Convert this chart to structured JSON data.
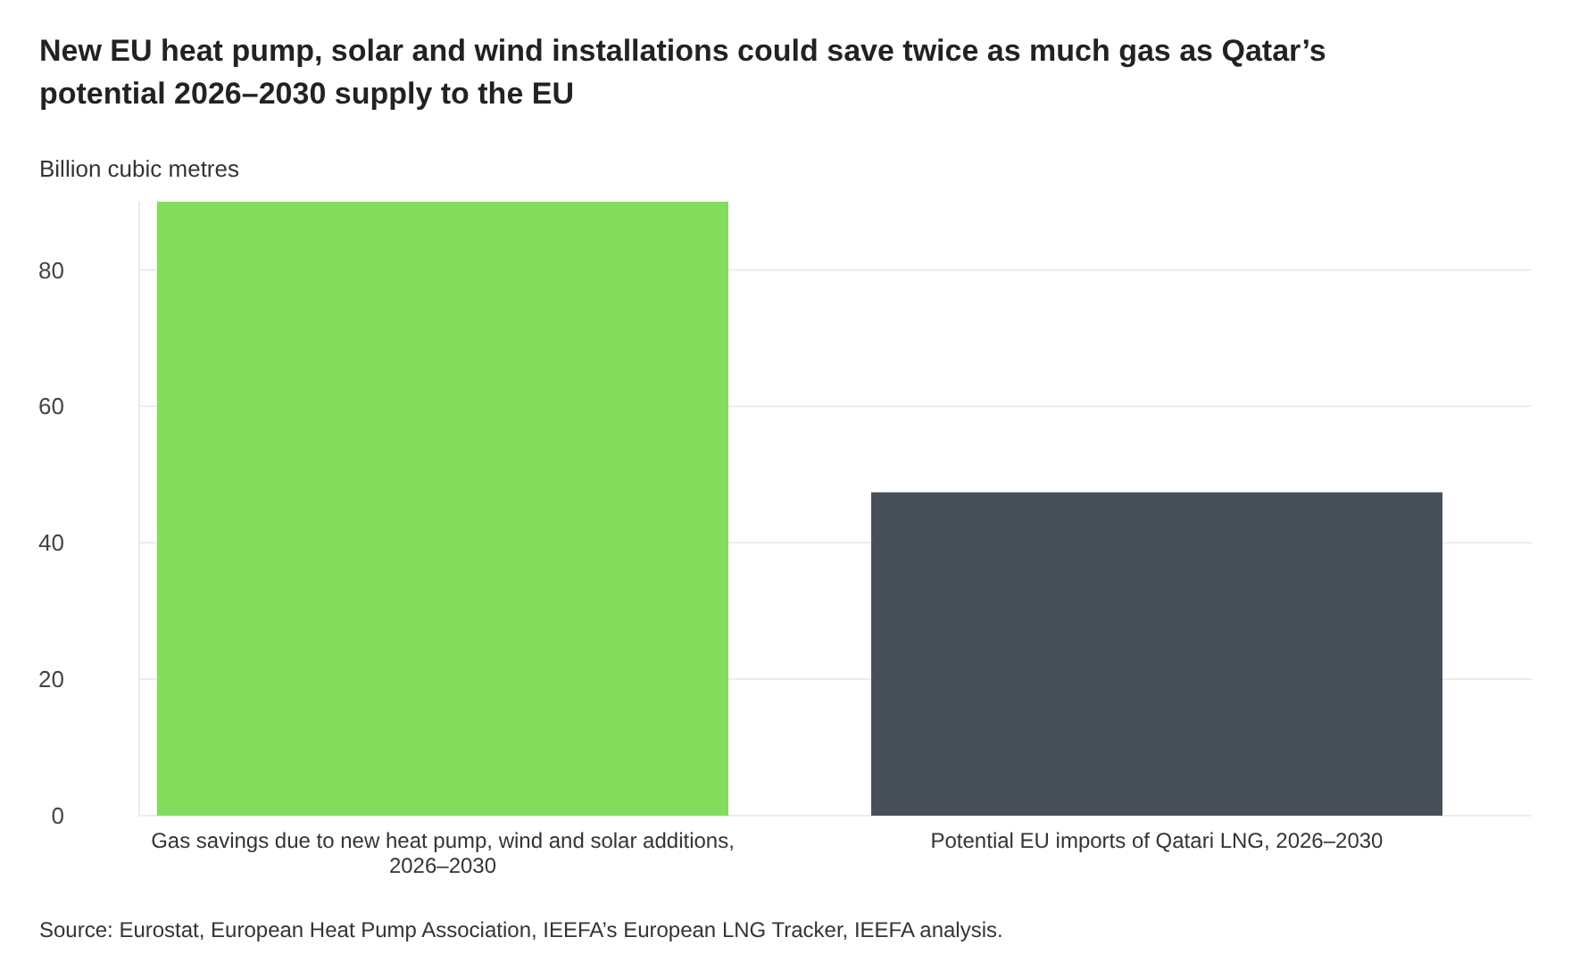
{
  "chart_data": {
    "type": "bar",
    "title": "New EU heat pump, solar and wind installations could save twice as much gas as Qatar’s potential 2026–2030 supply to the EU",
    "ylabel": "Billion cubic metres",
    "categories": [
      "Gas savings due to new heat pump, wind and solar additions, 2026–2030",
      "Potential EU imports of Qatari LNG, 2026–2030"
    ],
    "values": [
      90,
      47.4
    ],
    "colors": [
      "#84dc5c",
      "#475059"
    ],
    "ylim": [
      0,
      90
    ],
    "yticks": [
      0,
      20,
      40,
      60,
      80
    ],
    "grid": "y",
    "annotations": [
      "Source: Eurostat, European Heat Pump Association, IEEFA’s European LNG Tracker, IEEFA analysis."
    ]
  }
}
